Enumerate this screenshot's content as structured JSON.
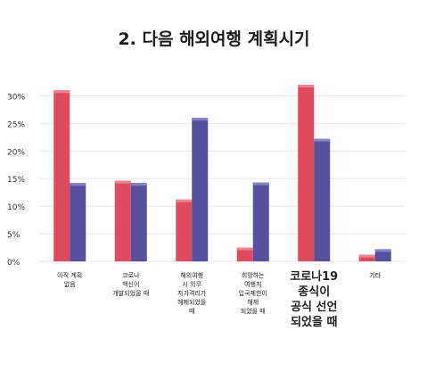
{
  "chart_data": {
    "type": "bar",
    "title": "2. 다음 해외여행 계획시기",
    "xlabel": "",
    "ylabel": "",
    "ylim": [
      0,
      32
    ],
    "yticks": [
      "0%",
      "5%",
      "10%",
      "15%",
      "20%",
      "25%",
      "30%"
    ],
    "ytick_values": [
      0,
      5,
      10,
      15,
      20,
      25,
      30
    ],
    "grid": true,
    "legend": "none",
    "categories": [
      [
        "아직 계획",
        "없음"
      ],
      [
        "코로나",
        "백신이",
        "개발되었을 때"
      ],
      [
        "해외여행",
        "시 의무",
        "자가격리가",
        "해제되었을",
        "때"
      ],
      [
        "희망하는",
        "여행지",
        "입국제한이",
        "해제",
        "되었을 때"
      ],
      [
        "코로나19",
        "종식이",
        "공식 선언",
        "되었을 때"
      ],
      [
        "기타"
      ]
    ],
    "emphasized_category": 4,
    "series": [
      {
        "color": "#e04a5f",
        "values": [
          31,
          14.6,
          11.2,
          2.5,
          32,
          1.2
        ]
      },
      {
        "color": "#57509e",
        "values": [
          14.2,
          14.2,
          26,
          14.3,
          22.2,
          2.2
        ]
      }
    ]
  }
}
